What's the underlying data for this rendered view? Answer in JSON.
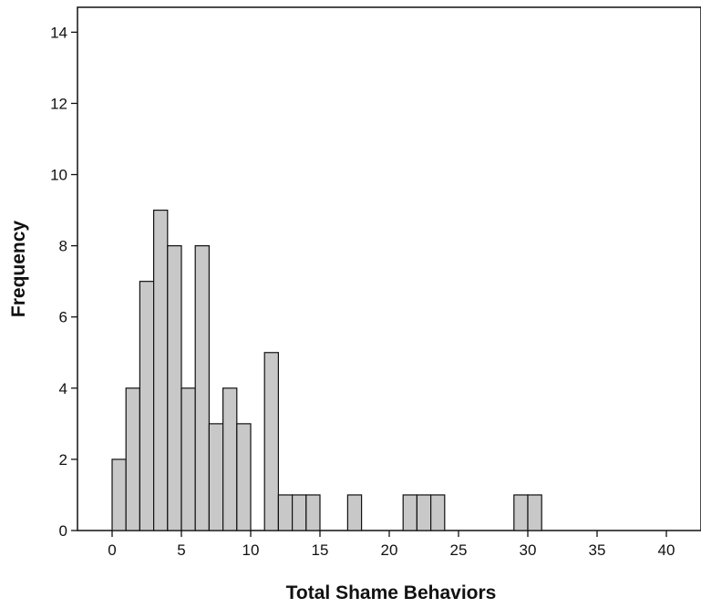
{
  "chart_data": {
    "type": "bar",
    "title": "",
    "xlabel": "Total Shame Behaviors",
    "ylabel": "Frequency",
    "xlim": [
      -2.5,
      42.5
    ],
    "ylim": [
      0,
      14.7
    ],
    "xticks": [
      0,
      5,
      10,
      15,
      20,
      25,
      30,
      35,
      40
    ],
    "yticks": [
      0,
      2,
      4,
      6,
      8,
      10,
      12,
      14
    ],
    "bin_width": 1,
    "grid": false,
    "bar_color": "#c8c8c8",
    "bins": [
      {
        "x": 0,
        "count": 2
      },
      {
        "x": 1,
        "count": 4
      },
      {
        "x": 2,
        "count": 7
      },
      {
        "x": 3,
        "count": 9
      },
      {
        "x": 4,
        "count": 8
      },
      {
        "x": 5,
        "count": 4
      },
      {
        "x": 6,
        "count": 8
      },
      {
        "x": 7,
        "count": 3
      },
      {
        "x": 8,
        "count": 4
      },
      {
        "x": 9,
        "count": 3
      },
      {
        "x": 11,
        "count": 5
      },
      {
        "x": 12,
        "count": 1
      },
      {
        "x": 13,
        "count": 1
      },
      {
        "x": 14,
        "count": 1
      },
      {
        "x": 17,
        "count": 1
      },
      {
        "x": 21,
        "count": 1
      },
      {
        "x": 22,
        "count": 1
      },
      {
        "x": 23,
        "count": 1
      },
      {
        "x": 29,
        "count": 1
      },
      {
        "x": 30,
        "count": 1
      }
    ]
  }
}
